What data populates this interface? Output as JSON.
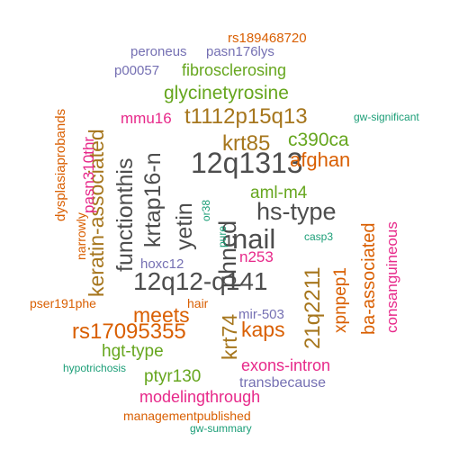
{
  "colors": {
    "dark": "#4d4d4d",
    "orange": "#d95f02",
    "purple": "#7570b3",
    "green": "#66a61e",
    "olive": "#a6761d",
    "magenta": "#e7298a",
    "teal": "#1b9e77"
  },
  "words": [
    {
      "text": "12q1313",
      "color": "dark"
    },
    {
      "text": "nail",
      "color": "dark"
    },
    {
      "text": "12q12-q141",
      "color": "dark"
    },
    {
      "text": "hs-type",
      "color": "dark"
    },
    {
      "text": "phned",
      "color": "dark"
    },
    {
      "text": "yetin",
      "color": "dark"
    },
    {
      "text": "krtap16-n",
      "color": "dark"
    },
    {
      "text": "functionthis",
      "color": "dark"
    },
    {
      "text": "keratin-associated",
      "color": "olive"
    },
    {
      "text": "krt85",
      "color": "olive"
    },
    {
      "text": "t1112p15q13",
      "color": "olive"
    },
    {
      "text": "afghan",
      "color": "orange"
    },
    {
      "text": "21q2211",
      "color": "olive"
    },
    {
      "text": "krt74",
      "color": "olive"
    },
    {
      "text": "meets",
      "color": "orange"
    },
    {
      "text": "rs17095355",
      "color": "orange"
    },
    {
      "text": "kaps",
      "color": "orange"
    },
    {
      "text": "xpnpep1",
      "color": "orange"
    },
    {
      "text": "ba-associated",
      "color": "orange"
    },
    {
      "text": "consanguineous",
      "color": "magenta"
    },
    {
      "text": "glycinetyrosine",
      "color": "green"
    },
    {
      "text": "c390ca",
      "color": "green"
    },
    {
      "text": "fibrosclerosing",
      "color": "green"
    },
    {
      "text": "aml-m4",
      "color": "green"
    },
    {
      "text": "hgt-type",
      "color": "green"
    },
    {
      "text": "ptyr130",
      "color": "green"
    },
    {
      "text": "modelingthrough",
      "color": "magenta"
    },
    {
      "text": "exons-intron",
      "color": "magenta"
    },
    {
      "text": "pasn310thr",
      "color": "magenta"
    },
    {
      "text": "mmu16",
      "color": "magenta"
    },
    {
      "text": "n253",
      "color": "magenta"
    },
    {
      "text": "pasn176lys",
      "color": "purple"
    },
    {
      "text": "peroneus",
      "color": "purple"
    },
    {
      "text": "p00057",
      "color": "purple"
    },
    {
      "text": "hoxc12",
      "color": "purple"
    },
    {
      "text": "mir-503",
      "color": "purple"
    },
    {
      "text": "transbecause",
      "color": "purple"
    },
    {
      "text": "rs189468720",
      "color": "orange"
    },
    {
      "text": "dysplasiaprobands",
      "color": "orange"
    },
    {
      "text": "narrowly",
      "color": "orange"
    },
    {
      "text": "pser191phe",
      "color": "orange"
    },
    {
      "text": "hair",
      "color": "orange"
    },
    {
      "text": "managementpublished",
      "color": "orange"
    },
    {
      "text": "gw-significant",
      "color": "teal"
    },
    {
      "text": "casp3",
      "color": "teal"
    },
    {
      "text": "pure",
      "color": "teal"
    },
    {
      "text": "or38",
      "color": "teal"
    },
    {
      "text": "hypotrichosis",
      "color": "teal"
    },
    {
      "text": "gw-summary",
      "color": "teal"
    }
  ]
}
